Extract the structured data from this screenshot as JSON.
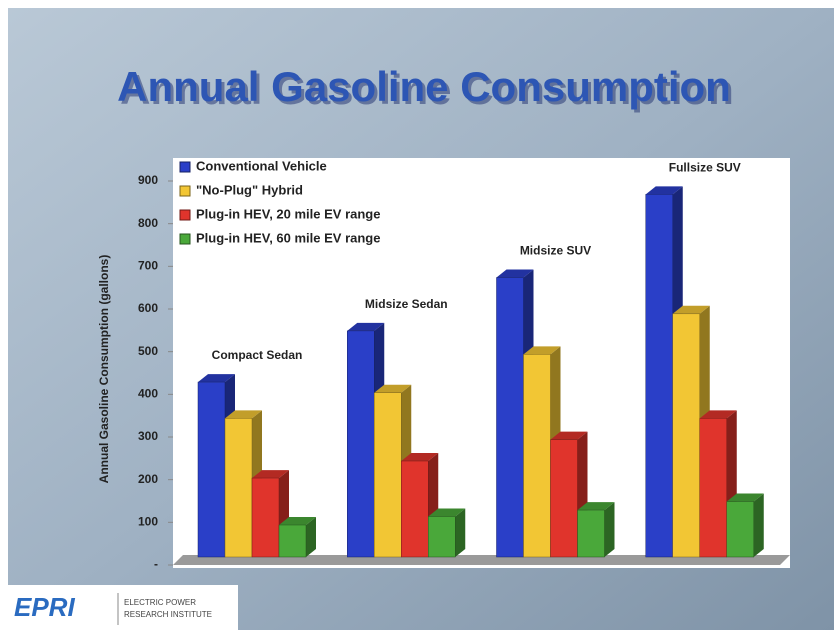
{
  "chart_data": {
    "type": "bar3d",
    "title": "Annual Gasoline Consumption",
    "y_axis_label": "Annual Gasoline Consumption (gallons)",
    "categories": [
      "Compact Sedan",
      "Midsize Sedan",
      "Midsize SUV",
      "Fullsize SUV"
    ],
    "series": [
      {
        "name": "Conventional Vehicle",
        "color": "#2a3fc8",
        "values": [
          410,
          530,
          655,
          850
        ]
      },
      {
        "name": "\"No-Plug\" Hybrid",
        "color": "#f2c634",
        "values": [
          325,
          385,
          475,
          570
        ]
      },
      {
        "name": "Plug-in HEV, 20 mile EV range",
        "color": "#e0342c",
        "values": [
          185,
          225,
          275,
          325
        ]
      },
      {
        "name": "Plug-in HEV, 60 mile EV range",
        "color": "#4aa83a",
        "values": [
          75,
          95,
          110,
          130
        ]
      }
    ],
    "ylim": [
      0,
      900
    ],
    "yticks": [
      {
        "value": 0,
        "label": "-"
      },
      100,
      200,
      300,
      400,
      500,
      600,
      700,
      800,
      900
    ],
    "legend": "top-left",
    "logo": {
      "mark": "EPRI",
      "line1": "ELECTRIC POWER",
      "line2": "RESEARCH INSTITUTE"
    }
  }
}
